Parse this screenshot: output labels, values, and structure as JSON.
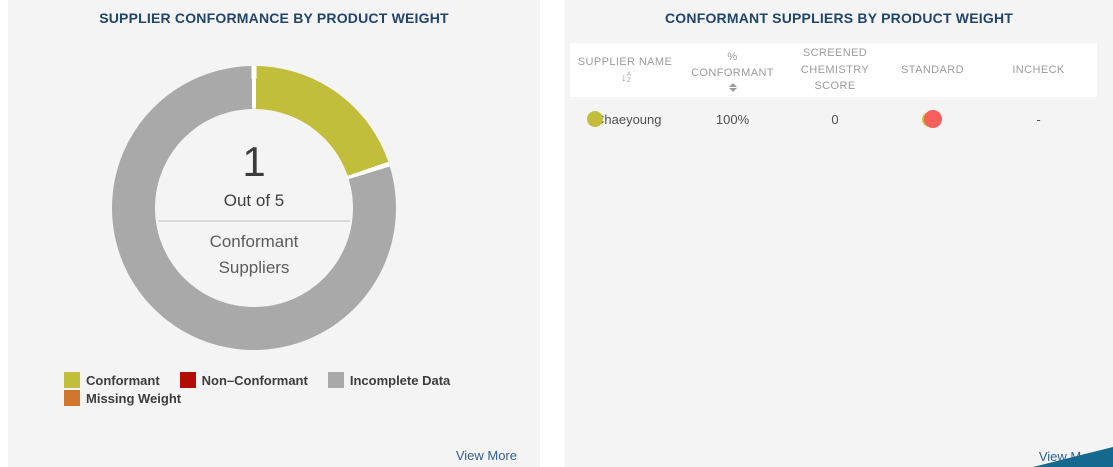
{
  "left_panel": {
    "title": "SUPPLIER CONFORMANCE BY PRODUCT WEIGHT",
    "center": {
      "value": "1",
      "out_of": "Out of 5",
      "label": "Conformant Suppliers"
    },
    "legend": [
      {
        "label": "Conformant",
        "color": "#c3bd3c"
      },
      {
        "label": "Non–Conformant",
        "color": "#b20c04"
      },
      {
        "label": "Incomplete Data",
        "color": "#a9a9a9"
      },
      {
        "label": "Missing Weight",
        "color": "#d1762f"
      }
    ],
    "view_more": "View More"
  },
  "chart_data": {
    "type": "pie",
    "subtype": "donut",
    "title": "Supplier Conformance by Product Weight",
    "categories": [
      "Conformant",
      "Non-Conformant",
      "Incomplete Data",
      "Missing Weight"
    ],
    "values": [
      1,
      0,
      4,
      0
    ],
    "total": 5,
    "colors": [
      "#c3bd3c",
      "#b20c04",
      "#a9a9a9",
      "#d1762f"
    ],
    "center_text": [
      "1",
      "Out of 5",
      "Conformant Suppliers"
    ],
    "legend_position": "bottom-left",
    "start_angle_deg": 0,
    "direction": "clockwise"
  },
  "right_panel": {
    "title": "CONFORMANT SUPPLIERS BY PRODUCT WEIGHT",
    "table": {
      "columns": {
        "supplier_name": "SUPPLIER NAME",
        "conformant": "% CONFORMANT",
        "score": "SCREENED CHEMISTRY SCORE",
        "standard": "STANDARD",
        "incheck": "INCHECK"
      },
      "sort_icon_az": {
        "arrow": "↓",
        "top": "A",
        "bottom": "Z"
      },
      "rows": [
        {
          "supplier_name": "Chaeyoung",
          "supplier_dot_color": "#c3bd3c",
          "conformant": "100%",
          "score": "0",
          "standard_dot_color": "#f7605a",
          "standard_dot_back_color": "#c3bd3c",
          "incheck": "-"
        }
      ]
    },
    "view_more": "View More"
  }
}
